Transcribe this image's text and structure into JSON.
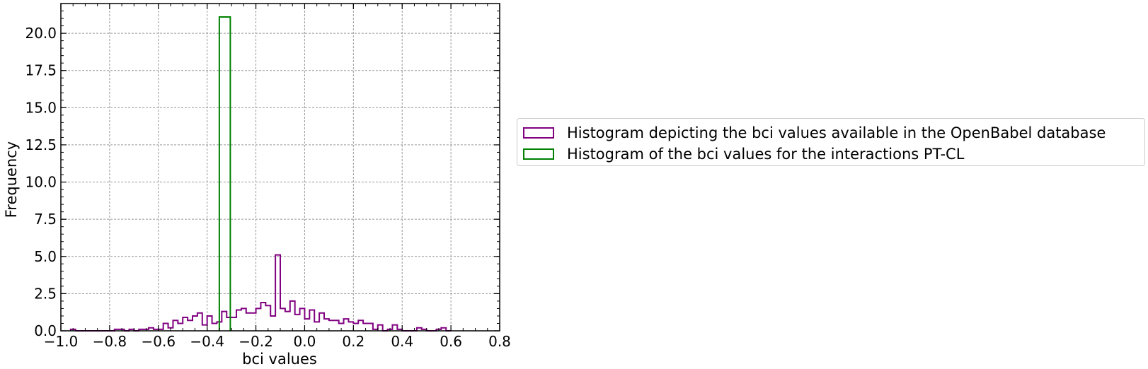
{
  "chart_data": {
    "type": "histogram",
    "xlabel": "bci values",
    "ylabel": "Frequency",
    "xlim": [
      -1.0,
      0.8
    ],
    "ylim": [
      0.0,
      22.0
    ],
    "xticks": [
      "−1.0",
      "−0.8",
      "−0.6",
      "−0.4",
      "−0.2",
      "0.0",
      "0.2",
      "0.4",
      "0.6",
      "0.8"
    ],
    "yticks": [
      "0.0",
      "2.5",
      "5.0",
      "7.5",
      "10.0",
      "12.5",
      "15.0",
      "17.5",
      "20.0"
    ],
    "grid": true,
    "legend_position": "right, outside the axes",
    "series": [
      {
        "name": "Histogram depicting the bci values available in the OpenBabel database",
        "color": "#800080",
        "bin_start": -0.96,
        "bin_width": 0.02,
        "values": [
          0.1,
          0,
          0,
          0,
          0,
          0,
          0,
          0,
          0,
          0.1,
          0.1,
          0,
          0.1,
          0,
          0.1,
          0.1,
          0.2,
          0.1,
          0.1,
          0.5,
          0.2,
          0.7,
          0.5,
          0.9,
          0.7,
          1.0,
          1.2,
          0.4,
          1.0,
          0.5,
          0.6,
          1.3,
          0.9,
          0.9,
          1.4,
          1.5,
          1.2,
          1.2,
          1.5,
          1.9,
          1.7,
          1.0,
          5.1,
          1.5,
          1.3,
          2.0,
          1.1,
          1.5,
          0.8,
          1.4,
          0.6,
          1.2,
          0.8,
          0.7,
          0.7,
          0.5,
          0.8,
          0.6,
          0.5,
          0.7,
          0.5,
          0.5,
          0.1,
          0.4,
          0,
          0.1,
          0.4,
          0.1,
          0,
          0,
          0,
          0.2,
          0.1,
          0,
          0,
          0.1,
          0.2,
          0
        ]
      },
      {
        "name": "Histogram of the bci values for the interactions PT-CL",
        "color": "#008000",
        "bins": [
          [
            -0.35,
            -0.305
          ]
        ],
        "values": [
          21.1
        ]
      }
    ]
  }
}
